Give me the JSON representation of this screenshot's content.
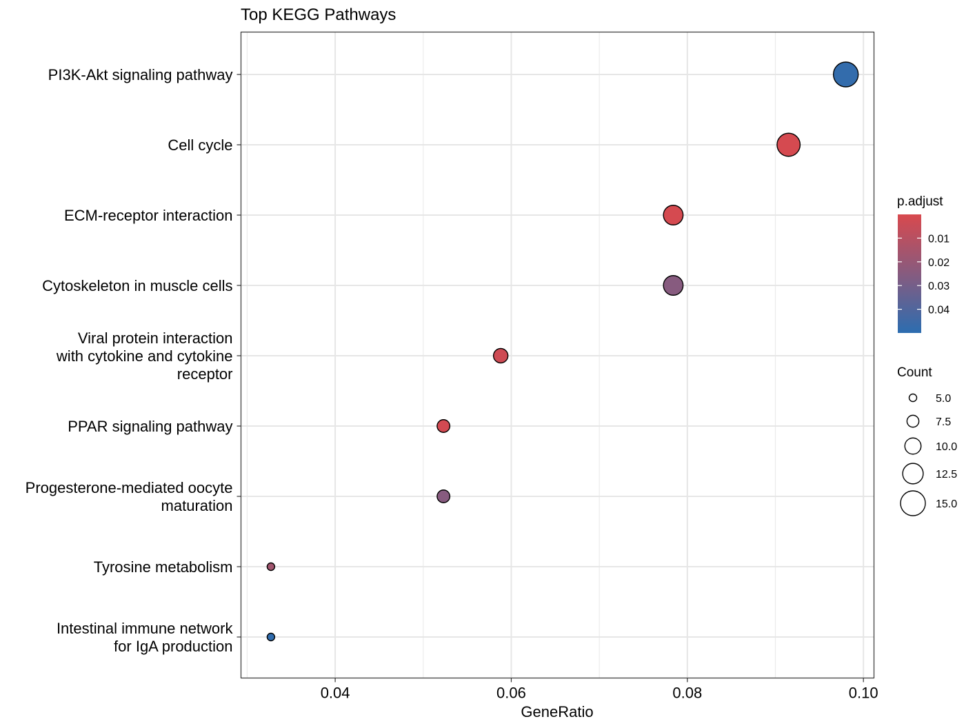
{
  "chart_data": {
    "type": "scatter",
    "title": "Top KEGG Pathways",
    "xlabel": "GeneRatio",
    "ylabel": "",
    "xlim": [
      0.0293,
      0.1012
    ],
    "xticks": [
      {
        "value": 0.04,
        "label": "0.04"
      },
      {
        "value": 0.06,
        "label": "0.06"
      },
      {
        "value": 0.08,
        "label": "0.08"
      },
      {
        "value": 0.1,
        "label": "0.10"
      }
    ],
    "grid": true,
    "categories": [
      {
        "label_lines": [
          "PI3K-Akt signaling pathway"
        ]
      },
      {
        "label_lines": [
          "Cell cycle"
        ]
      },
      {
        "label_lines": [
          "ECM-receptor interaction"
        ]
      },
      {
        "label_lines": [
          "Cytoskeleton in muscle cells"
        ]
      },
      {
        "label_lines": [
          "Viral protein interaction",
          "with cytokine and cytokine",
          "receptor"
        ]
      },
      {
        "label_lines": [
          "PPAR signaling pathway"
        ]
      },
      {
        "label_lines": [
          "Progesterone-mediated oocyte",
          "maturation"
        ]
      },
      {
        "label_lines": [
          "Tyrosine metabolism"
        ]
      },
      {
        "label_lines": [
          "Intestinal immune network",
          "for IgA production"
        ]
      }
    ],
    "points": [
      {
        "gene_ratio": 0.098,
        "count": 15,
        "p_adjust": 0.048
      },
      {
        "gene_ratio": 0.0915,
        "count": 14,
        "p_adjust": 0.001
      },
      {
        "gene_ratio": 0.0784,
        "count": 12,
        "p_adjust": 0.001
      },
      {
        "gene_ratio": 0.0784,
        "count": 12,
        "p_adjust": 0.025
      },
      {
        "gene_ratio": 0.0588,
        "count": 9,
        "p_adjust": 0.003
      },
      {
        "gene_ratio": 0.0523,
        "count": 8,
        "p_adjust": 0.002
      },
      {
        "gene_ratio": 0.0523,
        "count": 8,
        "p_adjust": 0.025
      },
      {
        "gene_ratio": 0.0327,
        "count": 5,
        "p_adjust": 0.017
      },
      {
        "gene_ratio": 0.0327,
        "count": 5,
        "p_adjust": 0.049
      }
    ],
    "color_legend": {
      "title": "p.adjust",
      "low_color": "#D8494E",
      "mid_color": "#875B7F",
      "high_color": "#2C6DB0",
      "range": [
        0.0,
        0.05
      ],
      "ticks": [
        {
          "value": 0.01,
          "label": "0.01"
        },
        {
          "value": 0.02,
          "label": "0.02"
        },
        {
          "value": 0.03,
          "label": "0.03"
        },
        {
          "value": 0.04,
          "label": "0.04"
        }
      ]
    },
    "size_legend": {
      "title": "Count",
      "entries": [
        {
          "value": 5.0,
          "label": "5.0"
        },
        {
          "value": 7.5,
          "label": "7.5"
        },
        {
          "value": 10.0,
          "label": "10.0"
        },
        {
          "value": 12.5,
          "label": "12.5"
        },
        {
          "value": 15.0,
          "label": "15.0"
        }
      ]
    }
  }
}
